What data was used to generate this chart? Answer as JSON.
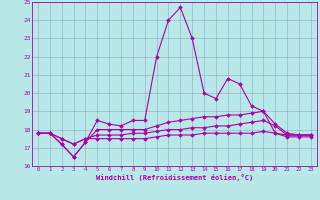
{
  "xlabel": "Windchill (Refroidissement éolien,°C)",
  "xlim": [
    -0.5,
    23.5
  ],
  "ylim": [
    16,
    25
  ],
  "yticks": [
    16,
    17,
    18,
    19,
    20,
    21,
    22,
    23,
    24,
    25
  ],
  "xticks": [
    0,
    1,
    2,
    3,
    4,
    5,
    6,
    7,
    8,
    9,
    10,
    11,
    12,
    13,
    14,
    15,
    16,
    17,
    18,
    19,
    20,
    21,
    22,
    23
  ],
  "bg_color": "#b8e8e8",
  "line_color": "#aa00aa",
  "grid_color": "#8899bb",
  "series": [
    [
      17.8,
      17.8,
      17.2,
      16.5,
      17.3,
      18.5,
      18.3,
      18.2,
      18.5,
      18.5,
      22.0,
      24.0,
      24.7,
      23.0,
      20.0,
      19.7,
      20.8,
      20.5,
      19.3,
      19.0,
      17.8,
      17.7,
      17.7,
      17.7
    ],
    [
      17.8,
      17.8,
      17.2,
      16.5,
      17.3,
      18.0,
      18.0,
      18.0,
      18.0,
      18.0,
      18.2,
      18.4,
      18.5,
      18.6,
      18.7,
      18.7,
      18.8,
      18.8,
      18.9,
      19.0,
      18.3,
      17.8,
      17.7,
      17.7
    ],
    [
      17.8,
      17.8,
      17.5,
      17.2,
      17.5,
      17.7,
      17.7,
      17.7,
      17.8,
      17.8,
      17.9,
      18.0,
      18.0,
      18.1,
      18.1,
      18.2,
      18.2,
      18.3,
      18.4,
      18.5,
      18.2,
      17.7,
      17.7,
      17.7
    ],
    [
      17.8,
      17.8,
      17.5,
      17.2,
      17.5,
      17.5,
      17.5,
      17.5,
      17.5,
      17.5,
      17.6,
      17.7,
      17.7,
      17.7,
      17.8,
      17.8,
      17.8,
      17.8,
      17.8,
      17.9,
      17.8,
      17.6,
      17.6,
      17.6
    ]
  ]
}
